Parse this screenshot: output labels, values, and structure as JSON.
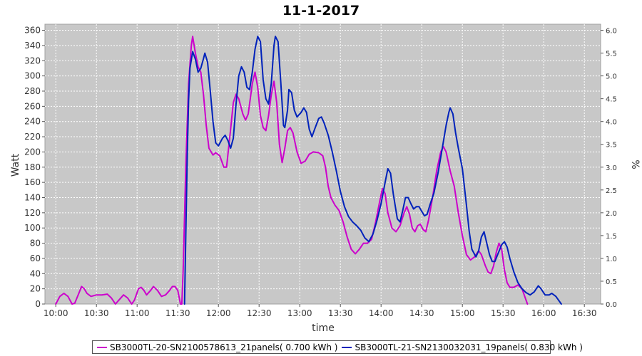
{
  "chart_data": {
    "type": "line",
    "title": "11-1-2017",
    "xlabel": "time",
    "ylabel": "Watt",
    "y2label": "%",
    "ylim": [
      0,
      368
    ],
    "y2lim": [
      0,
      6.133
    ],
    "xlim": [
      "09:52",
      "16:42"
    ],
    "grid": true,
    "legend_position": "bottom",
    "x_ticks": [
      "10:00",
      "10:30",
      "11:00",
      "11:30",
      "12:00",
      "12:30",
      "13:00",
      "13:30",
      "14:00",
      "14:30",
      "15:00",
      "15:30",
      "16:00",
      "16:30"
    ],
    "y_ticks": [
      0,
      20,
      40,
      60,
      80,
      100,
      120,
      140,
      160,
      180,
      200,
      220,
      240,
      260,
      280,
      300,
      320,
      340,
      360
    ],
    "y2_ticks": [
      "0.0",
      "0.5",
      "1.0",
      "1.5",
      "2.0",
      "2.5",
      "3.0",
      "3.5",
      "4.0",
      "4.5",
      "5.0",
      "5.5",
      "6.0"
    ],
    "series": [
      {
        "name": "SB3000TL-20-SN2100578613_21panels( 0.700 kWh )",
        "color": "#cc00cc",
        "points": [
          [
            "10:00",
            0
          ],
          [
            "10:03",
            10
          ],
          [
            "10:06",
            14
          ],
          [
            "10:09",
            10
          ],
          [
            "10:12",
            0
          ],
          [
            "10:14",
            1
          ],
          [
            "10:17",
            14
          ],
          [
            "10:19",
            23
          ],
          [
            "10:21",
            20
          ],
          [
            "10:23",
            14
          ],
          [
            "10:26",
            10
          ],
          [
            "10:30",
            12
          ],
          [
            "10:34",
            12
          ],
          [
            "10:38",
            13
          ],
          [
            "10:41",
            8
          ],
          [
            "10:44",
            0
          ],
          [
            "10:47",
            6
          ],
          [
            "10:50",
            12
          ],
          [
            "10:53",
            8
          ],
          [
            "10:56",
            0
          ],
          [
            "10:58",
            5
          ],
          [
            "11:01",
            20
          ],
          [
            "11:03",
            22
          ],
          [
            "11:05",
            18
          ],
          [
            "11:07",
            12
          ],
          [
            "11:10",
            18
          ],
          [
            "11:12",
            23
          ],
          [
            "11:15",
            18
          ],
          [
            "11:18",
            10
          ],
          [
            "11:21",
            12
          ],
          [
            "11:24",
            18
          ],
          [
            "11:26",
            23
          ],
          [
            "11:28",
            23
          ],
          [
            "11:30",
            18
          ],
          [
            "11:32",
            0
          ],
          [
            "11:33",
            0
          ],
          [
            "11:34",
            45
          ],
          [
            "11:36",
            185
          ],
          [
            "11:38",
            290
          ],
          [
            "11:40",
            340
          ],
          [
            "11:41",
            352
          ],
          [
            "11:43",
            330
          ],
          [
            "11:45",
            312
          ],
          [
            "11:47",
            305
          ],
          [
            "11:49",
            275
          ],
          [
            "11:51",
            235
          ],
          [
            "11:53",
            205
          ],
          [
            "11:56",
            196
          ],
          [
            "11:58",
            199
          ],
          [
            "12:01",
            195
          ],
          [
            "12:04",
            180
          ],
          [
            "12:06",
            180
          ],
          [
            "12:09",
            230
          ],
          [
            "12:11",
            265
          ],
          [
            "12:13",
            276
          ],
          [
            "12:15",
            270
          ],
          [
            "12:18",
            250
          ],
          [
            "12:20",
            242
          ],
          [
            "12:22",
            250
          ],
          [
            "12:25",
            290
          ],
          [
            "12:27",
            305
          ],
          [
            "12:29",
            285
          ],
          [
            "12:31",
            248
          ],
          [
            "12:33",
            232
          ],
          [
            "12:35",
            228
          ],
          [
            "12:37",
            248
          ],
          [
            "12:39",
            275
          ],
          [
            "12:41",
            293
          ],
          [
            "12:43",
            265
          ],
          [
            "12:45",
            210
          ],
          [
            "12:47",
            186
          ],
          [
            "12:49",
            205
          ],
          [
            "12:51",
            228
          ],
          [
            "12:53",
            232
          ],
          [
            "12:55",
            225
          ],
          [
            "12:58",
            200
          ],
          [
            "13:01",
            185
          ],
          [
            "13:04",
            188
          ],
          [
            "13:07",
            197
          ],
          [
            "13:10",
            200
          ],
          [
            "13:14",
            199
          ],
          [
            "13:17",
            195
          ],
          [
            "13:19",
            180
          ],
          [
            "13:21",
            155
          ],
          [
            "13:23",
            140
          ],
          [
            "13:26",
            130
          ],
          [
            "13:29",
            123
          ],
          [
            "13:32",
            108
          ],
          [
            "13:35",
            88
          ],
          [
            "13:38",
            72
          ],
          [
            "13:41",
            66
          ],
          [
            "13:44",
            72
          ],
          [
            "13:47",
            80
          ],
          [
            "13:50",
            80
          ],
          [
            "13:53",
            85
          ],
          [
            "13:56",
            108
          ],
          [
            "13:59",
            135
          ],
          [
            "14:01",
            152
          ],
          [
            "14:03",
            145
          ],
          [
            "14:05",
            120
          ],
          [
            "14:08",
            100
          ],
          [
            "14:11",
            95
          ],
          [
            "14:14",
            103
          ],
          [
            "14:17",
            120
          ],
          [
            "14:19",
            128
          ],
          [
            "14:21",
            118
          ],
          [
            "14:23",
            100
          ],
          [
            "14:25",
            95
          ],
          [
            "14:27",
            103
          ],
          [
            "14:29",
            105
          ],
          [
            "14:31",
            98
          ],
          [
            "14:33",
            95
          ],
          [
            "14:35",
            110
          ],
          [
            "14:38",
            140
          ],
          [
            "14:41",
            175
          ],
          [
            "14:44",
            200
          ],
          [
            "14:46",
            207
          ],
          [
            "14:48",
            200
          ],
          [
            "14:51",
            175
          ],
          [
            "14:54",
            155
          ],
          [
            "14:57",
            120
          ],
          [
            "15:00",
            90
          ],
          [
            "15:03",
            65
          ],
          [
            "15:06",
            58
          ],
          [
            "15:09",
            62
          ],
          [
            "15:12",
            70
          ],
          [
            "15:14",
            65
          ],
          [
            "15:17",
            50
          ],
          [
            "15:19",
            42
          ],
          [
            "15:21",
            40
          ],
          [
            "15:23",
            50
          ],
          [
            "15:25",
            68
          ],
          [
            "15:27",
            80
          ],
          [
            "15:29",
            72
          ],
          [
            "15:31",
            45
          ],
          [
            "15:33",
            28
          ],
          [
            "15:35",
            22
          ],
          [
            "15:38",
            22
          ],
          [
            "15:41",
            25
          ],
          [
            "15:44",
            20
          ],
          [
            "15:46",
            10
          ],
          [
            "15:48",
            0
          ]
        ]
      },
      {
        "name": "SB3000TL-21-SN2130032031_19panels( 0.830 kWh )",
        "color": "#0022bb",
        "points": [
          [
            "11:35",
            0
          ],
          [
            "11:37",
            195
          ],
          [
            "11:38",
            268
          ],
          [
            "11:39",
            310
          ],
          [
            "11:41",
            332
          ],
          [
            "11:43",
            322
          ],
          [
            "11:45",
            305
          ],
          [
            "11:47",
            310
          ],
          [
            "11:49",
            323
          ],
          [
            "11:50",
            330
          ],
          [
            "11:52",
            318
          ],
          [
            "11:54",
            280
          ],
          [
            "11:56",
            240
          ],
          [
            "11:58",
            212
          ],
          [
            "12:00",
            208
          ],
          [
            "12:03",
            218
          ],
          [
            "12:05",
            222
          ],
          [
            "12:07",
            215
          ],
          [
            "12:09",
            205
          ],
          [
            "12:11",
            218
          ],
          [
            "12:13",
            263
          ],
          [
            "12:15",
            300
          ],
          [
            "12:17",
            312
          ],
          [
            "12:19",
            305
          ],
          [
            "12:21",
            285
          ],
          [
            "12:23",
            282
          ],
          [
            "12:25",
            305
          ],
          [
            "12:27",
            335
          ],
          [
            "12:29",
            352
          ],
          [
            "12:31",
            345
          ],
          [
            "12:33",
            295
          ],
          [
            "12:35",
            270
          ],
          [
            "12:37",
            263
          ],
          [
            "12:39",
            290
          ],
          [
            "12:41",
            340
          ],
          [
            "12:42",
            352
          ],
          [
            "12:44",
            345
          ],
          [
            "12:46",
            292
          ],
          [
            "12:48",
            235
          ],
          [
            "12:49",
            232
          ],
          [
            "12:51",
            255
          ],
          [
            "12:52",
            282
          ],
          [
            "12:54",
            278
          ],
          [
            "12:56",
            255
          ],
          [
            "12:58",
            246
          ],
          [
            "13:01",
            252
          ],
          [
            "13:03",
            258
          ],
          [
            "13:05",
            252
          ],
          [
            "13:07",
            230
          ],
          [
            "13:09",
            220
          ],
          [
            "13:11",
            230
          ],
          [
            "13:14",
            244
          ],
          [
            "13:16",
            246
          ],
          [
            "13:18",
            238
          ],
          [
            "13:21",
            222
          ],
          [
            "13:24",
            200
          ],
          [
            "13:27",
            175
          ],
          [
            "13:30",
            148
          ],
          [
            "13:33",
            128
          ],
          [
            "13:36",
            115
          ],
          [
            "13:39",
            108
          ],
          [
            "13:42",
            103
          ],
          [
            "13:45",
            97
          ],
          [
            "13:48",
            87
          ],
          [
            "13:51",
            82
          ],
          [
            "13:54",
            92
          ],
          [
            "13:57",
            110
          ],
          [
            "14:00",
            132
          ],
          [
            "14:03",
            160
          ],
          [
            "14:05",
            178
          ],
          [
            "14:07",
            172
          ],
          [
            "14:09",
            145
          ],
          [
            "14:12",
            112
          ],
          [
            "14:14",
            108
          ],
          [
            "14:16",
            123
          ],
          [
            "14:18",
            140
          ],
          [
            "14:20",
            140
          ],
          [
            "14:22",
            132
          ],
          [
            "14:24",
            125
          ],
          [
            "14:26",
            128
          ],
          [
            "14:28",
            128
          ],
          [
            "14:30",
            122
          ],
          [
            "14:32",
            116
          ],
          [
            "14:34",
            118
          ],
          [
            "14:36",
            130
          ],
          [
            "14:39",
            146
          ],
          [
            "14:42",
            172
          ],
          [
            "14:45",
            203
          ],
          [
            "14:48",
            235
          ],
          [
            "14:50",
            252
          ],
          [
            "14:51",
            258
          ],
          [
            "14:53",
            250
          ],
          [
            "14:55",
            225
          ],
          [
            "14:57",
            205
          ],
          [
            "15:00",
            178
          ],
          [
            "15:03",
            130
          ],
          [
            "15:05",
            96
          ],
          [
            "15:07",
            72
          ],
          [
            "15:10",
            62
          ],
          [
            "15:12",
            70
          ],
          [
            "15:14",
            88
          ],
          [
            "15:16",
            95
          ],
          [
            "15:18",
            80
          ],
          [
            "15:20",
            65
          ],
          [
            "15:22",
            56
          ],
          [
            "15:24",
            56
          ],
          [
            "15:26",
            65
          ],
          [
            "15:29",
            78
          ],
          [
            "15:31",
            82
          ],
          [
            "15:33",
            75
          ],
          [
            "15:35",
            60
          ],
          [
            "15:38",
            42
          ],
          [
            "15:41",
            28
          ],
          [
            "15:44",
            20
          ],
          [
            "15:47",
            15
          ],
          [
            "15:50",
            12
          ],
          [
            "15:53",
            16
          ],
          [
            "15:56",
            24
          ],
          [
            "15:58",
            20
          ],
          [
            "16:01",
            12
          ],
          [
            "16:04",
            12
          ],
          [
            "16:06",
            14
          ],
          [
            "16:09",
            10
          ],
          [
            "16:11",
            5
          ],
          [
            "16:13",
            0
          ]
        ]
      }
    ]
  }
}
